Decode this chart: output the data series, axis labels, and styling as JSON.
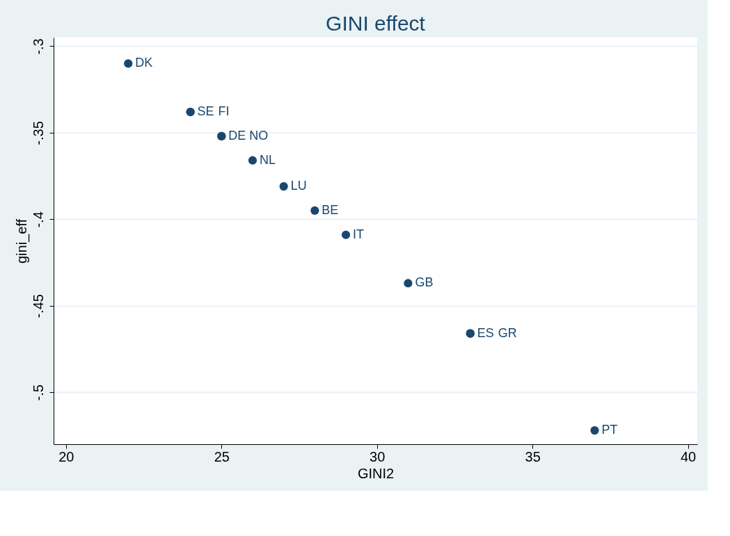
{
  "chart_data": {
    "type": "scatter",
    "title": "GINI effect",
    "xlabel": "GINI2",
    "ylabel": "gini_eff",
    "x": [
      22,
      24,
      24,
      25,
      25,
      26,
      27,
      28,
      29,
      31,
      33,
      33,
      37
    ],
    "series": [
      {
        "color": "#1a476f",
        "values": [
          -0.31,
          -0.338,
          -0.338,
          -0.352,
          -0.352,
          -0.366,
          -0.381,
          -0.395,
          -0.409,
          -0.437,
          -0.466,
          -0.466,
          -0.522
        ]
      }
    ],
    "annotations": [
      {
        "text": "DK",
        "x": 22,
        "y": -0.31
      },
      {
        "text": "SE",
        "x": 24,
        "y": -0.338
      },
      {
        "text": "FI",
        "x": 24,
        "y": -0.338
      },
      {
        "text": "DE",
        "x": 25,
        "y": -0.352
      },
      {
        "text": "NO",
        "x": 25,
        "y": -0.352
      },
      {
        "text": "NL",
        "x": 26,
        "y": -0.366
      },
      {
        "text": "LU",
        "x": 27,
        "y": -0.381
      },
      {
        "text": "BE",
        "x": 28,
        "y": -0.395
      },
      {
        "text": "IT",
        "x": 29,
        "y": -0.409
      },
      {
        "text": "GB",
        "x": 31,
        "y": -0.437
      },
      {
        "text": "ES",
        "x": 33,
        "y": -0.466
      },
      {
        "text": "GR",
        "x": 33,
        "y": -0.466
      },
      {
        "text": "PT",
        "x": 37,
        "y": -0.522
      }
    ],
    "xlim": [
      19.6,
      40.3
    ],
    "xticks": [
      20,
      25,
      30,
      35,
      40
    ],
    "ylim": [
      -0.53,
      -0.295
    ],
    "yticks": [
      {
        "value": -0.3,
        "label": "-.3"
      },
      {
        "value": -0.35,
        "label": "-.35"
      },
      {
        "value": -0.4,
        "label": "-.4"
      },
      {
        "value": -0.45,
        "label": "-.45"
      },
      {
        "value": -0.5,
        "label": "-.5"
      }
    ],
    "grid": "y",
    "marker": "circle"
  }
}
